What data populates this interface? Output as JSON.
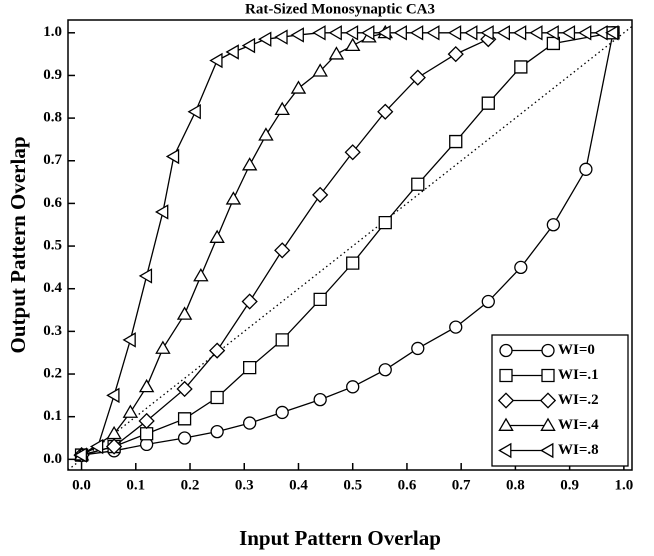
{
  "chart_data": {
    "type": "line",
    "title": "Rat-Sized Monosynaptic CA3",
    "x_label": "Input Pattern Overlap",
    "y_label": "Output Pattern Overlap",
    "xlim": [
      -0.025,
      1.015
    ],
    "ylim": [
      -0.025,
      1.03
    ],
    "xticks": [
      {
        "value": 0,
        "label": "0.0"
      },
      {
        "value": 0.1,
        "label": "0.1"
      },
      {
        "value": 0.2,
        "label": "0.2"
      },
      {
        "value": 0.3,
        "label": "0.3"
      },
      {
        "value": 0.4,
        "label": "0.4"
      },
      {
        "value": 0.5,
        "label": "0.5"
      },
      {
        "value": 0.6,
        "label": "0.6"
      },
      {
        "value": 0.7,
        "label": "0.7"
      },
      {
        "value": 0.8,
        "label": "0.8"
      },
      {
        "value": 0.9,
        "label": "0.9"
      },
      {
        "value": 1,
        "label": "1.0"
      }
    ],
    "yticks": [
      {
        "value": 0,
        "label": "0.0"
      },
      {
        "value": 0.1,
        "label": "0.1"
      },
      {
        "value": 0.2,
        "label": "0.2"
      },
      {
        "value": 0.3,
        "label": "0.3"
      },
      {
        "value": 0.4,
        "label": "0.4"
      },
      {
        "value": 0.5,
        "label": "0.5"
      },
      {
        "value": 0.6,
        "label": "0.6"
      },
      {
        "value": 0.7,
        "label": "0.7"
      },
      {
        "value": 0.8,
        "label": "0.8"
      },
      {
        "value": 0.9,
        "label": "0.9"
      },
      {
        "value": 1,
        "label": "1.0"
      }
    ],
    "legend": "lower right",
    "series": [
      {
        "name": "WI=0",
        "marker": "circle",
        "color": "#000000",
        "x": [
          0,
          0.06,
          0.12,
          0.19,
          0.25,
          0.31,
          0.37,
          0.44,
          0.5,
          0.56,
          0.62,
          0.69,
          0.75,
          0.81,
          0.87,
          0.93,
          0.98
        ],
        "values": [
          0.01,
          0.02,
          0.035,
          0.05,
          0.065,
          0.085,
          0.11,
          0.14,
          0.17,
          0.21,
          0.26,
          0.31,
          0.37,
          0.45,
          0.55,
          0.68,
          1.0
        ]
      },
      {
        "name": "WI=.1",
        "marker": "square",
        "color": "#000000",
        "x": [
          0,
          0.06,
          0.12,
          0.19,
          0.25,
          0.31,
          0.37,
          0.44,
          0.5,
          0.56,
          0.62,
          0.69,
          0.75,
          0.81,
          0.87,
          0.98
        ],
        "values": [
          0.01,
          0.03,
          0.06,
          0.095,
          0.145,
          0.215,
          0.28,
          0.375,
          0.46,
          0.555,
          0.645,
          0.745,
          0.835,
          0.92,
          0.975,
          1.0
        ]
      },
      {
        "name": "WI=.2",
        "marker": "diamond",
        "color": "#000000",
        "x": [
          0,
          0.06,
          0.12,
          0.19,
          0.25,
          0.31,
          0.37,
          0.44,
          0.5,
          0.56,
          0.62,
          0.69,
          0.75
        ],
        "values": [
          0.01,
          0.03,
          0.09,
          0.165,
          0.255,
          0.37,
          0.49,
          0.62,
          0.72,
          0.815,
          0.895,
          0.95,
          0.985
        ]
      },
      {
        "name": "WI=.4",
        "marker": "triangle-up",
        "color": "#000000",
        "x": [
          0,
          0.06,
          0.09,
          0.12,
          0.15,
          0.19,
          0.22,
          0.25,
          0.28,
          0.31,
          0.34,
          0.37,
          0.4,
          0.44,
          0.47,
          0.5,
          0.53,
          0.56
        ],
        "values": [
          0.01,
          0.06,
          0.11,
          0.17,
          0.26,
          0.34,
          0.43,
          0.52,
          0.61,
          0.69,
          0.76,
          0.82,
          0.87,
          0.91,
          0.95,
          0.97,
          0.99,
          1.0
        ]
      },
      {
        "name": "WI=.8",
        "marker": "triangle-left",
        "color": "#000000",
        "x": [
          0,
          0.03,
          0.06,
          0.09,
          0.12,
          0.15,
          0.17,
          0.21,
          0.25,
          0.28,
          0.31,
          0.34,
          0.37,
          0.4,
          0.44,
          0.47,
          0.5,
          0.53,
          0.56,
          0.59,
          0.62,
          0.65,
          0.69,
          0.72,
          0.75,
          0.78,
          0.81,
          0.84,
          0.87,
          0.9,
          0.93,
          0.96,
          0.98
        ],
        "values": [
          0.01,
          0.03,
          0.15,
          0.28,
          0.43,
          0.58,
          0.71,
          0.815,
          0.935,
          0.955,
          0.97,
          0.985,
          0.99,
          0.995,
          1.0,
          1.0,
          1.0,
          1.0,
          1.0,
          1.0,
          1.0,
          1.0,
          1.0,
          1.0,
          1.0,
          1.0,
          1.0,
          1.0,
          1.0,
          1.0,
          1.0,
          1.0,
          1.0
        ]
      }
    ]
  }
}
